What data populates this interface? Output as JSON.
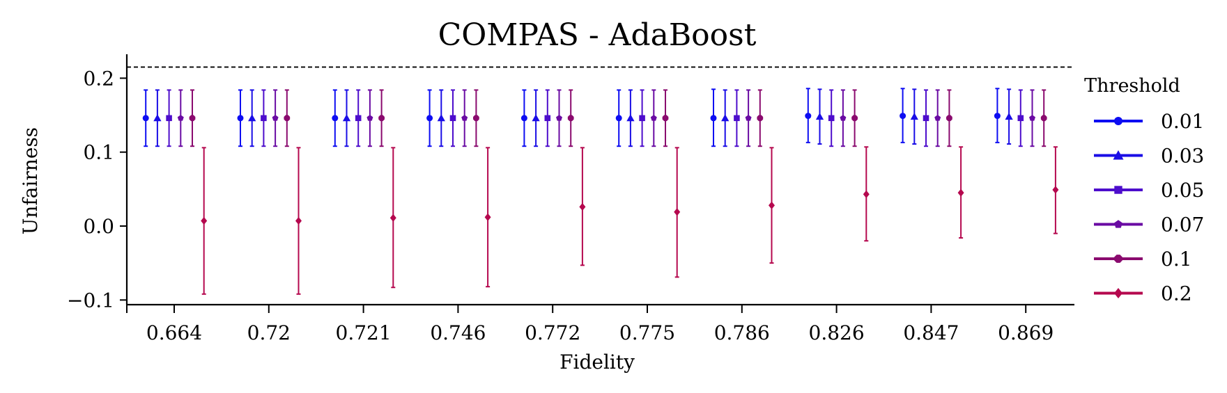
{
  "chart_data": {
    "type": "errorbar",
    "title": "COMPAS - AdaBoost",
    "xlabel": "Fidelity",
    "ylabel": "Unfairness",
    "categories": [
      "0.664",
      "0.72",
      "0.721",
      "0.746",
      "0.772",
      "0.775",
      "0.786",
      "0.826",
      "0.847",
      "0.869"
    ],
    "ylim": [
      -0.11,
      0.23
    ],
    "yticks": [
      -0.1,
      0.0,
      0.1,
      0.2
    ],
    "ytick_labels": [
      "−0.1",
      "0.0",
      "0.1",
      "0.2"
    ],
    "reference_line": {
      "y": 0.215,
      "style": "dashed",
      "color": "#000000"
    },
    "grid": false,
    "legend": {
      "title": "Threshold",
      "placement": "outside-right"
    },
    "series": [
      {
        "name": "0.01",
        "color": "#0d0df2",
        "marker": "circle",
        "values": [
          0.146,
          0.146,
          0.146,
          0.146,
          0.146,
          0.146,
          0.146,
          0.149,
          0.149,
          0.149
        ],
        "err_low": [
          0.108,
          0.108,
          0.108,
          0.108,
          0.108,
          0.108,
          0.108,
          0.113,
          0.113,
          0.113
        ],
        "err_high": [
          0.184,
          0.184,
          0.184,
          0.184,
          0.184,
          0.184,
          0.185,
          0.186,
          0.186,
          0.186
        ]
      },
      {
        "name": "0.03",
        "color": "#1a0de6",
        "marker": "triangle",
        "values": [
          0.146,
          0.146,
          0.146,
          0.146,
          0.146,
          0.146,
          0.146,
          0.148,
          0.148,
          0.148
        ],
        "err_low": [
          0.108,
          0.108,
          0.108,
          0.108,
          0.108,
          0.108,
          0.108,
          0.111,
          0.111,
          0.111
        ],
        "err_high": [
          0.184,
          0.184,
          0.184,
          0.184,
          0.184,
          0.184,
          0.184,
          0.185,
          0.185,
          0.185
        ]
      },
      {
        "name": "0.05",
        "color": "#4d0dcc",
        "marker": "square",
        "values": [
          0.146,
          0.146,
          0.146,
          0.146,
          0.146,
          0.146,
          0.146,
          0.146,
          0.146,
          0.146
        ],
        "err_low": [
          0.108,
          0.108,
          0.108,
          0.108,
          0.108,
          0.108,
          0.108,
          0.108,
          0.108,
          0.108
        ],
        "err_high": [
          0.184,
          0.184,
          0.184,
          0.184,
          0.184,
          0.184,
          0.184,
          0.184,
          0.184,
          0.184
        ]
      },
      {
        "name": "0.07",
        "color": "#6a0ba3",
        "marker": "pentagon",
        "values": [
          0.146,
          0.146,
          0.146,
          0.146,
          0.146,
          0.146,
          0.146,
          0.146,
          0.146,
          0.146
        ],
        "err_low": [
          0.108,
          0.108,
          0.108,
          0.108,
          0.108,
          0.108,
          0.108,
          0.108,
          0.108,
          0.108
        ],
        "err_high": [
          0.184,
          0.184,
          0.184,
          0.184,
          0.184,
          0.184,
          0.184,
          0.184,
          0.184,
          0.184
        ]
      },
      {
        "name": "0.1",
        "color": "#8a0a6e",
        "marker": "octagon",
        "values": [
          0.146,
          0.146,
          0.146,
          0.146,
          0.146,
          0.146,
          0.146,
          0.146,
          0.146,
          0.146
        ],
        "err_low": [
          0.108,
          0.108,
          0.108,
          0.108,
          0.108,
          0.108,
          0.108,
          0.108,
          0.108,
          0.108
        ],
        "err_high": [
          0.184,
          0.184,
          0.184,
          0.184,
          0.184,
          0.184,
          0.184,
          0.184,
          0.184,
          0.184
        ]
      },
      {
        "name": "0.2",
        "color": "#b5084e",
        "marker": "diamond",
        "values": [
          0.007,
          0.007,
          0.011,
          0.012,
          0.026,
          0.019,
          0.028,
          0.043,
          0.045,
          0.049
        ],
        "err_low": [
          -0.092,
          -0.092,
          -0.083,
          -0.082,
          -0.053,
          -0.069,
          -0.05,
          -0.02,
          -0.016,
          -0.01
        ],
        "err_high": [
          0.106,
          0.106,
          0.106,
          0.106,
          0.106,
          0.106,
          0.106,
          0.107,
          0.107,
          0.107
        ]
      }
    ]
  }
}
